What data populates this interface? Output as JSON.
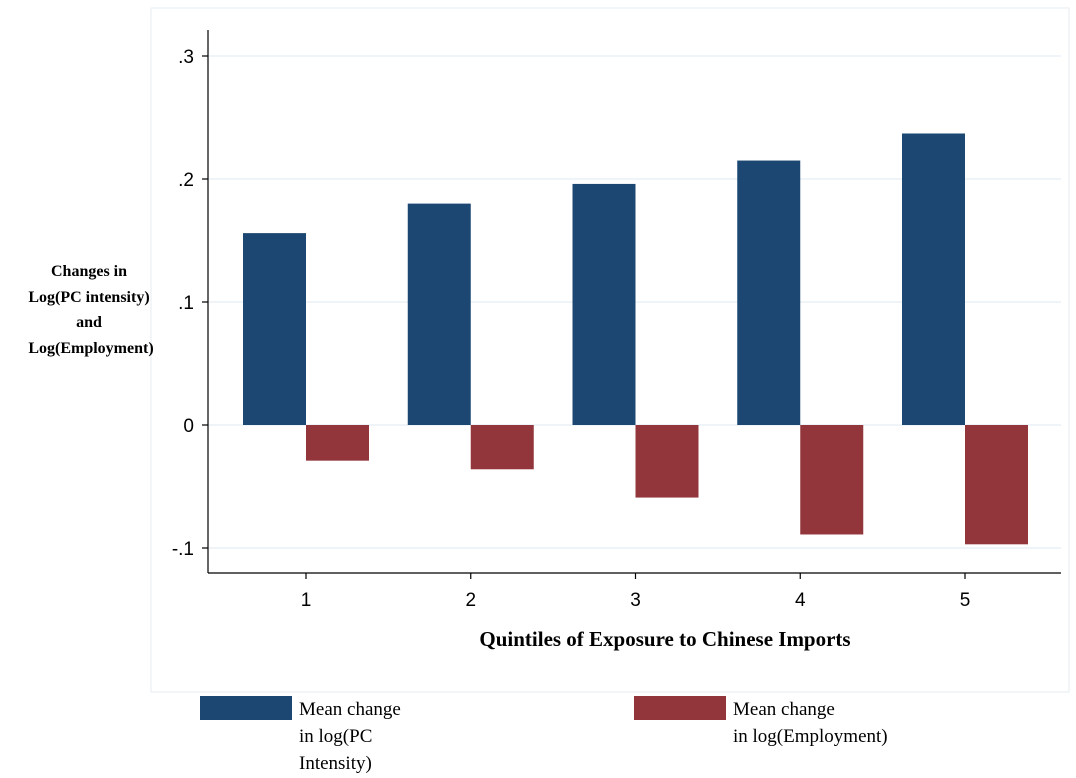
{
  "chart_data": {
    "type": "bar",
    "categories": [
      "1",
      "2",
      "3",
      "4",
      "5"
    ],
    "series": [
      {
        "name": "Mean change in log(PC Intensity)",
        "values": [
          0.156,
          0.18,
          0.196,
          0.215,
          0.237
        ],
        "color": "#1b4772"
      },
      {
        "name": "Mean change in log(Employment)",
        "values": [
          -0.029,
          -0.036,
          -0.059,
          -0.089,
          -0.097
        ],
        "color": "#93363c"
      }
    ],
    "yticks": [
      ".3",
      ".2",
      ".1",
      "0",
      "-.1"
    ],
    "ytick_values": [
      0.3,
      0.2,
      0.1,
      0,
      -0.1
    ],
    "ylim": [
      -0.12,
      0.32
    ],
    "ylabel_lines": [
      "Changes in",
      "Log(PC intensity)",
      "and",
      "Log(Employment)"
    ],
    "xlabel": "Quintiles of Exposure to Chinese Imports",
    "legend": {
      "position": "bottom",
      "entries": [
        {
          "lines": [
            "Mean change",
            "in log(PC",
            "Intensity)"
          ],
          "color": "#1b4772"
        },
        {
          "lines": [
            "Mean change",
            "in log(Employment)"
          ],
          "color": "#93363c"
        }
      ]
    },
    "grid": true
  }
}
